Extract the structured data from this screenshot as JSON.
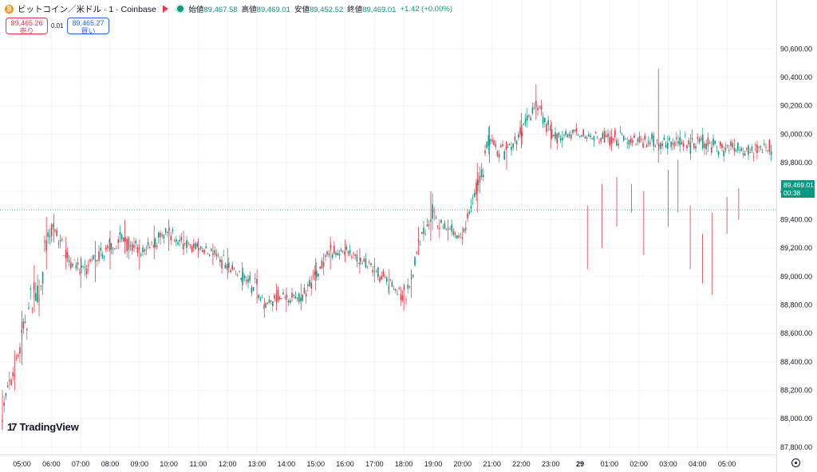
{
  "header": {
    "coin_icon_glyph": "₿",
    "symbol_title": "ビットコイン／米ドル · 1 · Coinbase",
    "ohlc": [
      {
        "label": "始値",
        "value": "89,467.58"
      },
      {
        "label": "高値",
        "value": "89,469.01"
      },
      {
        "label": "安値",
        "value": "89,452.52"
      },
      {
        "label": "終値",
        "value": "89,469.01"
      }
    ],
    "change": "+1.42 (+0.00%)"
  },
  "trade": {
    "sell_price": "89,465.26",
    "sell_label": "売り",
    "spread": "0.01",
    "buy_price": "89,465.27",
    "buy_label": "買い"
  },
  "price_tag": {
    "price": "89,469.01",
    "countdown": "00:38"
  },
  "logo": {
    "mark": "17",
    "text": "TradingView"
  },
  "colors": {
    "up": "#089981",
    "down": "#f23645",
    "grid": "#f0f3fa",
    "text": "#131722",
    "buy": "#2962ff"
  },
  "chart_data": {
    "type": "candlestick",
    "ylim": [
      87700,
      90700
    ],
    "y_ticks": [
      87800,
      88000,
      88200,
      88400,
      88600,
      88800,
      89000,
      89200,
      89400,
      89600,
      89800,
      90000,
      90200,
      90400,
      90600
    ],
    "y_tick_labels": [
      "87,800.00",
      "88,000.00",
      "88,200.00",
      "88,400.00",
      "88,600.00",
      "88,800.00",
      "89,000.00",
      "89,200.00",
      "89,400.00",
      "89,600.00",
      "89,800.00",
      "90,000.00",
      "90,200.00",
      "90,400.00",
      "90,600.00"
    ],
    "x_ticks": [
      "05:00",
      "06:00",
      "07:00",
      "08:00",
      "09:00",
      "10:00",
      "11:00",
      "12:00",
      "13:00",
      "14:00",
      "15:00",
      "16:00",
      "17:00",
      "18:00",
      "19:00",
      "20:00",
      "21:00",
      "22:00",
      "23:00",
      "29",
      "01:00",
      "02:00",
      "03:00",
      "04:00",
      "05:00"
    ],
    "x_range": [
      "04:20",
      "05:24"
    ],
    "current_price": 89469.01,
    "series": [
      {
        "t": "04:20",
        "low": 87920,
        "high": 88200
      },
      {
        "t": "04:45",
        "low": 88200,
        "high": 88480
      },
      {
        "t": "05:00",
        "low": 88380,
        "high": 88760
      },
      {
        "t": "05:25",
        "low": 88750,
        "high": 89080
      },
      {
        "t": "05:35",
        "low": 88720,
        "high": 88980
      },
      {
        "t": "05:50",
        "low": 89050,
        "high": 89420
      },
      {
        "t": "06:05",
        "low": 89240,
        "high": 89440
      },
      {
        "t": "06:30",
        "low": 89050,
        "high": 89280
      },
      {
        "t": "07:00",
        "low": 88920,
        "high": 89140
      },
      {
        "t": "07:30",
        "low": 88960,
        "high": 89250
      },
      {
        "t": "08:00",
        "low": 89050,
        "high": 89320
      },
      {
        "t": "08:30",
        "low": 89160,
        "high": 89400
      },
      {
        "t": "09:00",
        "low": 89050,
        "high": 89260
      },
      {
        "t": "09:30",
        "low": 89120,
        "high": 89360
      },
      {
        "t": "10:00",
        "low": 89180,
        "high": 89400
      },
      {
        "t": "10:30",
        "low": 89150,
        "high": 89320
      },
      {
        "t": "11:00",
        "low": 89130,
        "high": 89270
      },
      {
        "t": "11:30",
        "low": 89080,
        "high": 89230
      },
      {
        "t": "12:00",
        "low": 88980,
        "high": 89200
      },
      {
        "t": "12:30",
        "low": 88900,
        "high": 89100
      },
      {
        "t": "13:00",
        "low": 88810,
        "high": 89050
      },
      {
        "t": "13:15",
        "low": 88710,
        "high": 88850
      },
      {
        "t": "13:40",
        "low": 88760,
        "high": 88950
      },
      {
        "t": "14:00",
        "low": 88750,
        "high": 88920
      },
      {
        "t": "14:30",
        "low": 88760,
        "high": 88950
      },
      {
        "t": "15:00",
        "low": 88900,
        "high": 89130
      },
      {
        "t": "15:30",
        "low": 89050,
        "high": 89280
      },
      {
        "t": "16:00",
        "low": 89100,
        "high": 89260
      },
      {
        "t": "16:30",
        "low": 89020,
        "high": 89200
      },
      {
        "t": "17:00",
        "low": 88960,
        "high": 89130
      },
      {
        "t": "17:30",
        "low": 88870,
        "high": 89050
      },
      {
        "t": "18:00",
        "low": 88760,
        "high": 88950
      },
      {
        "t": "18:15",
        "low": 88850,
        "high": 89050
      },
      {
        "t": "18:30",
        "low": 89150,
        "high": 89350
      },
      {
        "t": "18:55",
        "low": 89250,
        "high": 89600
      },
      {
        "t": "19:30",
        "low": 89250,
        "high": 89400
      },
      {
        "t": "20:00",
        "low": 89220,
        "high": 89350
      },
      {
        "t": "20:30",
        "low": 89450,
        "high": 89800
      },
      {
        "t": "20:55",
        "low": 89800,
        "high": 90060
      },
      {
        "t": "21:30",
        "low": 89750,
        "high": 89950
      },
      {
        "t": "22:00",
        "low": 89900,
        "high": 90150
      },
      {
        "t": "22:30",
        "low": 90100,
        "high": 90350
      },
      {
        "t": "23:00",
        "low": 89900,
        "high": 90100
      },
      {
        "t": "23:20",
        "low": 89500,
        "high": 89800
      },
      {
        "t": "23:45",
        "low": 88760,
        "high": 89350
      },
      {
        "t": "00:15",
        "low": 89050,
        "high": 89500
      },
      {
        "t": "00:45",
        "low": 89200,
        "high": 89650
      },
      {
        "t": "01:15",
        "low": 89350,
        "high": 89700
      },
      {
        "t": "01:45",
        "low": 89450,
        "high": 89650
      },
      {
        "t": "02:10",
        "low": 89150,
        "high": 89600
      },
      {
        "t": "02:40",
        "low": 89800,
        "high": 90460
      },
      {
        "t": "03:00",
        "low": 89350,
        "high": 89750
      },
      {
        "t": "03:20",
        "low": 89450,
        "high": 89820
      },
      {
        "t": "03:45",
        "low": 89050,
        "high": 89500
      },
      {
        "t": "04:10",
        "low": 88950,
        "high": 89300
      },
      {
        "t": "04:30",
        "low": 88870,
        "high": 89450
      },
      {
        "t": "05:00",
        "low": 89300,
        "high": 89560
      },
      {
        "t": "05:24",
        "low": 89400,
        "high": 89620
      }
    ]
  }
}
